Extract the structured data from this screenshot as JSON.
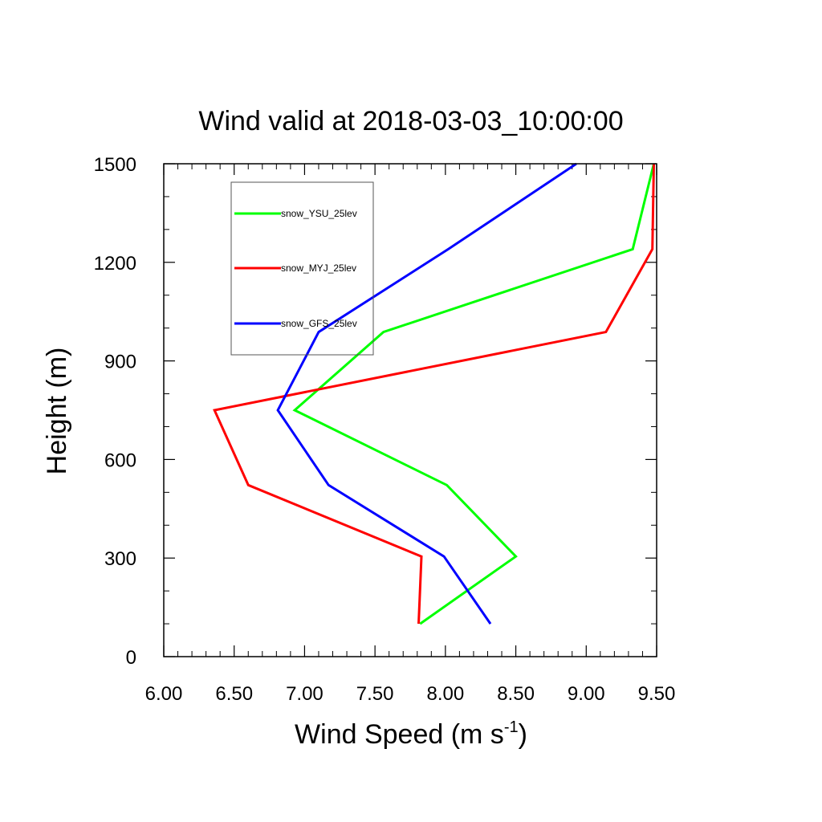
{
  "chart_data": {
    "type": "line",
    "title": "Wind valid at 2018-03-03_10:00:00",
    "xlabel": "Wind Speed (m s",
    "xlabel_sup": "-1",
    "xlabel_end": ")",
    "ylabel": "Height (m)",
    "xlim": [
      6.0,
      9.5
    ],
    "ylim": [
      0,
      1500
    ],
    "xticks": [
      "6.00",
      "6.50",
      "7.00",
      "7.50",
      "8.00",
      "8.50",
      "9.00",
      "9.50"
    ],
    "yticks": [
      "0",
      "300",
      "600",
      "900",
      "1200",
      "1500"
    ],
    "legend_position": "top-left",
    "grid": false,
    "series": [
      {
        "name": "snow_YSU_25lev",
        "color": "#00ff00",
        "points": [
          [
            7.82,
            100
          ],
          [
            8.5,
            305
          ],
          [
            8.01,
            522
          ],
          [
            6.93,
            750
          ],
          [
            7.56,
            988
          ],
          [
            9.33,
            1240
          ],
          [
            9.48,
            1500
          ]
        ]
      },
      {
        "name": "snow_MYJ_25lev",
        "color": "#ff0000",
        "points": [
          [
            7.81,
            100
          ],
          [
            7.83,
            305
          ],
          [
            6.6,
            522
          ],
          [
            6.36,
            750
          ],
          [
            9.14,
            988
          ],
          [
            9.47,
            1240
          ],
          [
            9.48,
            1500
          ]
        ]
      },
      {
        "name": "snow_GFS_25lev",
        "color": "#0000ff",
        "points": [
          [
            8.32,
            100
          ],
          [
            7.99,
            305
          ],
          [
            7.17,
            522
          ],
          [
            6.81,
            750
          ],
          [
            7.1,
            988
          ],
          [
            8.02,
            1240
          ],
          [
            8.93,
            1500
          ]
        ]
      }
    ]
  }
}
